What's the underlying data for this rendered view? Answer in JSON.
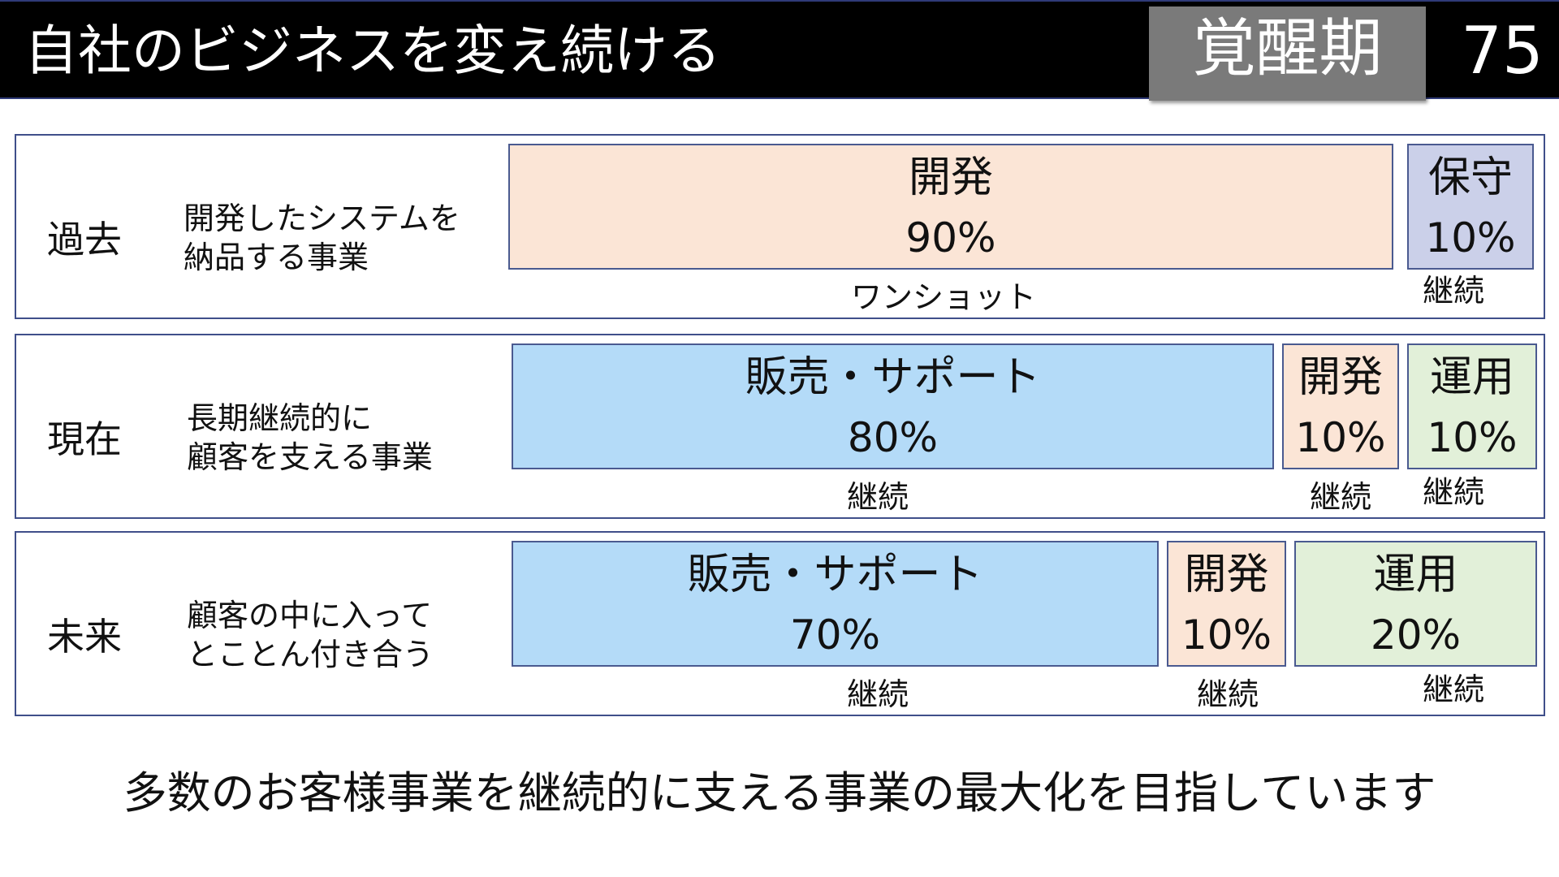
{
  "header": {
    "title": "自社のビジネスを変え続ける",
    "phase": "覚醒期",
    "page_number": "75"
  },
  "colors": {
    "development": "#fbe5d6",
    "maintenance": "#cbd0e9",
    "sales_support": "#b4dbf8",
    "operation": "#e2f0d9",
    "border": "#4a5a90"
  },
  "rows": [
    {
      "era": "過去",
      "desc_line1": "開発したシステムを",
      "desc_line2": "納品する事業",
      "boxes": [
        {
          "label": "開発",
          "percent": "90%",
          "value": 90,
          "caption": "ワンショット"
        },
        {
          "label": "保守",
          "percent": "10%",
          "value": 10,
          "caption": "継続"
        }
      ]
    },
    {
      "era": "現在",
      "desc_line1": "長期継続的に",
      "desc_line2": "顧客を支える事業",
      "boxes": [
        {
          "label": "販売・サポート",
          "percent": "80%",
          "value": 80,
          "caption": "継続"
        },
        {
          "label": "開発",
          "percent": "10%",
          "value": 10,
          "caption": "継続"
        },
        {
          "label": "運用",
          "percent": "10%",
          "value": 10,
          "caption": "継続"
        }
      ]
    },
    {
      "era": "未来",
      "desc_line1": "顧客の中に入って",
      "desc_line2": "とことん付き合う",
      "boxes": [
        {
          "label": "販売・サポート",
          "percent": "70%",
          "value": 70,
          "caption": "継続"
        },
        {
          "label": "開発",
          "percent": "10%",
          "value": 10,
          "caption": "継続"
        },
        {
          "label": "運用",
          "percent": "20%",
          "value": 20,
          "caption": "継続"
        }
      ]
    }
  ],
  "footer": "多数のお客様事業を継続的に支える事業の最大化を目指しています"
}
